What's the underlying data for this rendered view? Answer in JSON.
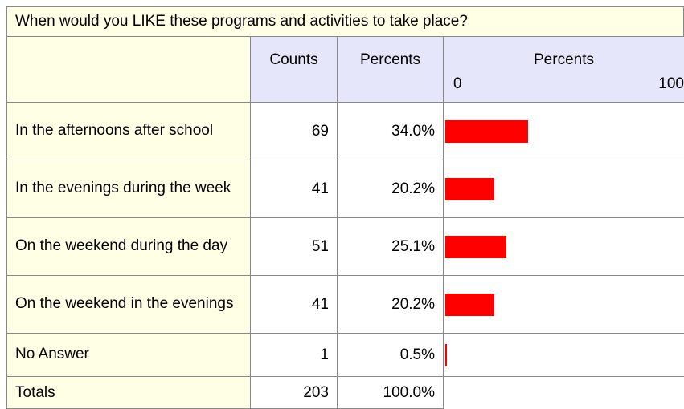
{
  "title": "When would you LIKE these programs and activities to take place?",
  "header": {
    "counts": "Counts",
    "percents": "Percents",
    "bar": "Percents",
    "scale": [
      0,
      100
    ]
  },
  "bar_color": "#ff0000",
  "rows": [
    {
      "label": "In the afternoons after school",
      "count": 69,
      "percent": 34.0,
      "percent_label": "34.0%"
    },
    {
      "label": "In the evenings during the week",
      "count": 41,
      "percent": 20.2,
      "percent_label": "20.2%"
    },
    {
      "label": "On the weekend during the day",
      "count": 51,
      "percent": 25.1,
      "percent_label": "25.1%"
    },
    {
      "label": "On the weekend in the evenings",
      "count": 41,
      "percent": 20.2,
      "percent_label": "20.2%"
    },
    {
      "label": "No Answer",
      "count": 1,
      "percent": 0.5,
      "percent_label": "0.5%"
    }
  ],
  "totals": {
    "label": "Totals",
    "count": 203,
    "percent_label": "100.0%"
  }
}
